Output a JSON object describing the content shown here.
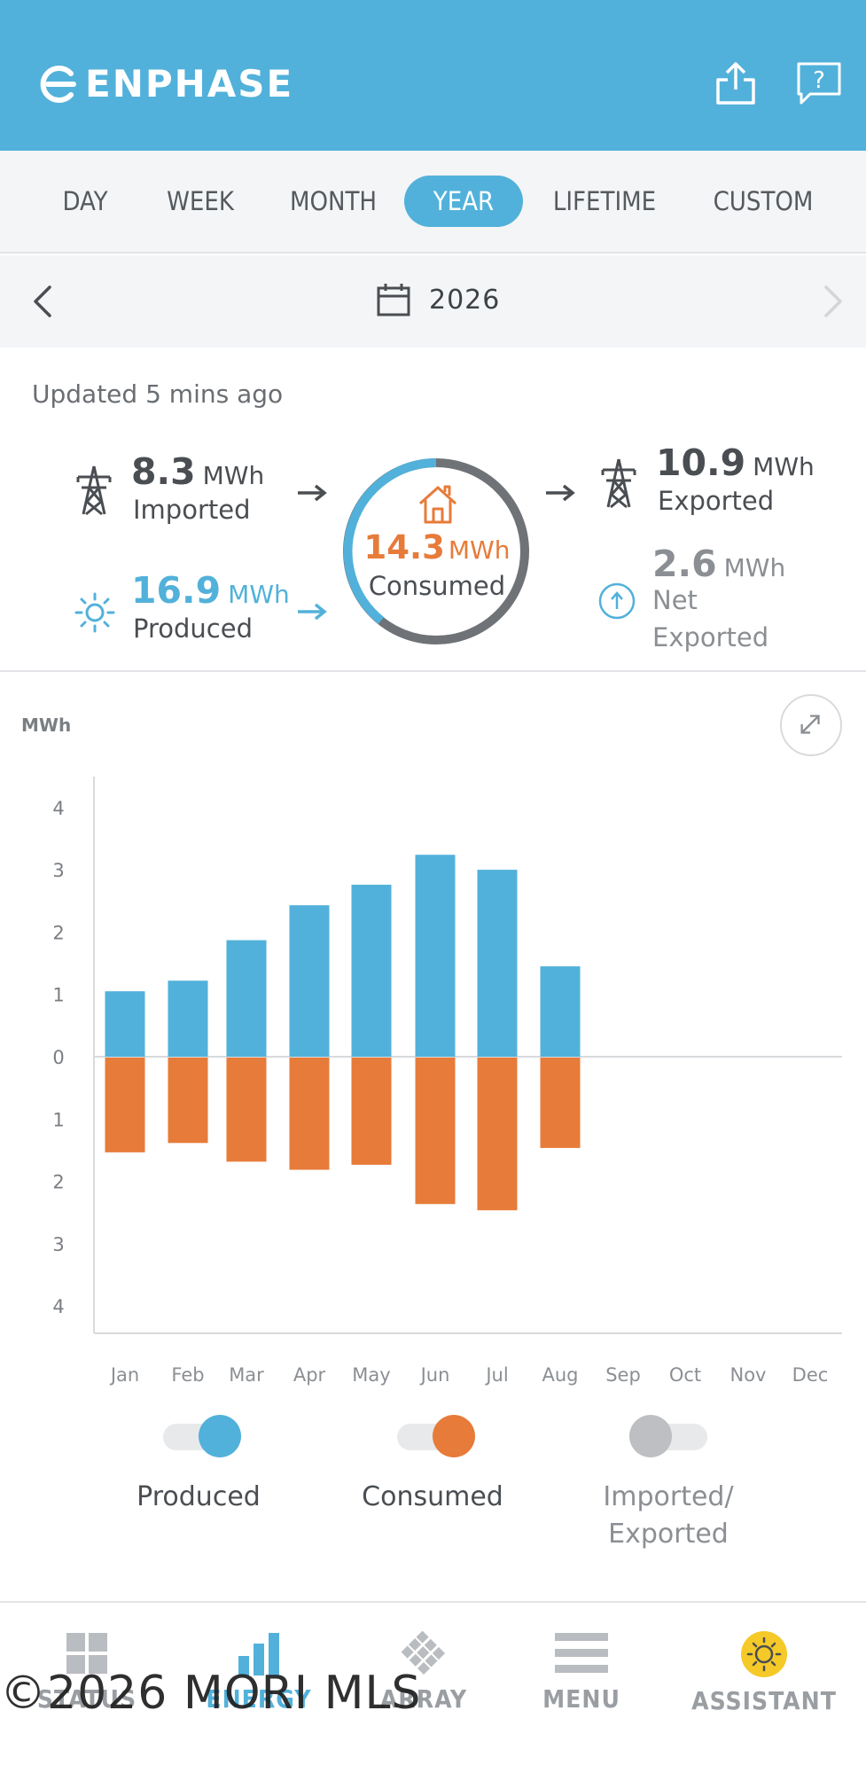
{
  "header": {
    "brand": "ENPHASE",
    "share_icon": "share-icon",
    "help_icon": "help-icon",
    "help_glyph": "?"
  },
  "tabs": [
    {
      "label": "DAY",
      "active": false
    },
    {
      "label": "WEEK",
      "active": false
    },
    {
      "label": "MONTH",
      "active": false
    },
    {
      "label": "YEAR",
      "active": true
    },
    {
      "label": "LIFETIME",
      "active": false
    },
    {
      "label": "CUSTOM",
      "active": false
    }
  ],
  "date_nav": {
    "year": "2026",
    "prev_icon": "chevron-left-icon",
    "next_icon": "chevron-right-icon",
    "next_enabled": false
  },
  "summary": {
    "updated": "Updated 5 mins ago",
    "imported": {
      "value": "8.3",
      "unit": "MWh",
      "label": "Imported"
    },
    "produced": {
      "value": "16.9",
      "unit": "MWh",
      "label": "Produced"
    },
    "consumed": {
      "value": "14.3",
      "unit": "MWh",
      "label": "Consumed"
    },
    "exported": {
      "value": "10.9",
      "unit": "MWh",
      "label": "Exported"
    },
    "net": {
      "value": "2.6",
      "unit": "MWh",
      "label_line1": "Net",
      "label_line2": "Exported"
    }
  },
  "colors": {
    "brand": "#52b1da",
    "produced": "#52b1da",
    "consumed": "#e77b3a",
    "imported_exported": "#bdbfc2"
  },
  "chart_data": {
    "type": "bar",
    "ylabel": "MWh",
    "categories": [
      "Jan",
      "Feb",
      "Mar",
      "Apr",
      "May",
      "Jun",
      "Jul",
      "Aug",
      "Sep",
      "Oct",
      "Nov",
      "Dec"
    ],
    "series": [
      {
        "name": "Produced",
        "values": [
          1.05,
          1.22,
          1.87,
          2.43,
          2.76,
          3.24,
          3.0,
          1.45,
          null,
          null,
          null,
          null
        ]
      },
      {
        "name": "Consumed",
        "values": [
          1.52,
          1.37,
          1.67,
          1.8,
          1.72,
          2.35,
          2.45,
          1.45,
          null,
          null,
          null,
          null
        ]
      }
    ],
    "produced_direction": "up",
    "consumed_direction": "down",
    "y_ticks": [
      "4",
      "3",
      "2",
      "1",
      "0",
      "1",
      "2",
      "3",
      "4"
    ],
    "ylim": [
      -4,
      4
    ],
    "grid": false
  },
  "legend": [
    {
      "label": "Produced",
      "on": true
    },
    {
      "label": "Consumed",
      "on": true
    },
    {
      "label_line1": "Imported/",
      "label_line2": "Exported",
      "on": false
    }
  ],
  "bottom_nav": [
    {
      "label": "STATUS",
      "icon": "status-grid-icon",
      "active": false
    },
    {
      "label": "ENERGY",
      "icon": "energy-bars-icon",
      "active": true
    },
    {
      "label": "ARRAY",
      "icon": "array-panels-icon",
      "active": false
    },
    {
      "label": "MENU",
      "icon": "menu-icon",
      "active": false
    },
    {
      "label": "ASSISTANT",
      "icon": "assistant-sun-icon",
      "active": false
    }
  ],
  "watermark": "©2026 MORI MLS"
}
